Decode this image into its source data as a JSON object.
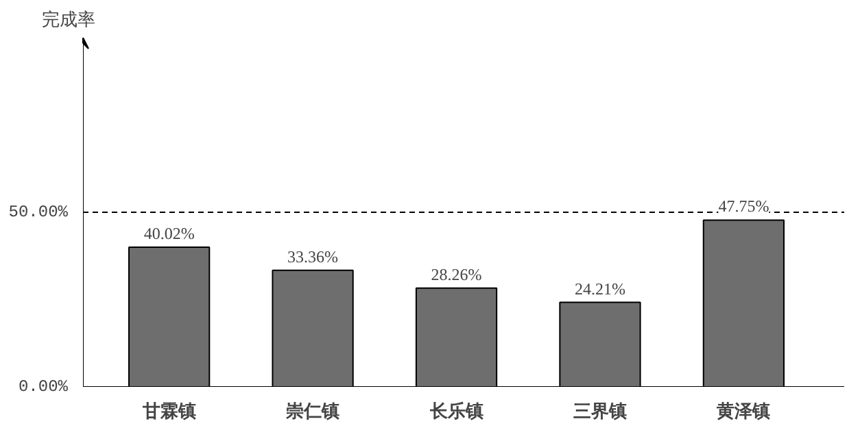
{
  "chart_data": {
    "type": "bar",
    "ylabel": "完成率",
    "categories": [
      "甘霖镇",
      "崇仁镇",
      "长乐镇",
      "三界镇",
      "黄泽镇"
    ],
    "values": [
      40.02,
      33.36,
      28.26,
      24.21,
      47.75
    ],
    "value_labels": [
      "40.02%",
      "33.36%",
      "28.26%",
      "24.21%",
      "47.75%"
    ],
    "color": "#6e6e6e",
    "ylim": [
      0,
      100
    ],
    "yticks": [
      {
        "value": 0,
        "label": "0.00%"
      },
      {
        "value": 50,
        "label": "50.00%"
      }
    ],
    "ref_lines": [
      {
        "axis": "y",
        "value": 50,
        "label": null,
        "color": "#000000",
        "line_style": "dashed"
      }
    ],
    "grid": false
  }
}
